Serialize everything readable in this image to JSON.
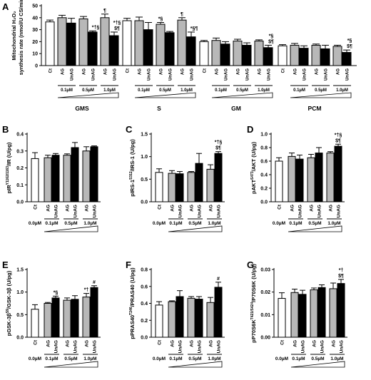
{
  "chart_data": [
    {
      "type": "bar",
      "panel": "A",
      "ylabel": "Mitochondrial H₂O₂ synthesis rate (nmol/U CS/min)",
      "ylim": [
        0,
        50
      ],
      "yticks": [
        0,
        10,
        20,
        30,
        40,
        50
      ],
      "grid": false,
      "categories": [
        "Ct",
        "AG 0.1µM",
        "UnAG 0.1µM",
        "AG 0.5µM",
        "UnAG 0.5µM",
        "AG 1.0µM",
        "UnAG 1.0µM"
      ],
      "tick_labels": [
        "Ct",
        "AG",
        "UnAG",
        "AG",
        "UnAG",
        "AG",
        "UnAG"
      ],
      "dose_labels": [
        "0.1µM",
        "0.5µM",
        "1.0µM"
      ],
      "groups": [
        {
          "name": "GMS",
          "values": [
            36.5,
            40.0,
            35.5,
            39.0,
            28.0,
            40.0,
            25.0
          ],
          "errors": [
            1.5,
            2.0,
            4.0,
            2.0,
            1.0,
            3.0,
            3.0
          ],
          "annotations": [
            null,
            null,
            null,
            null,
            "*†§",
            "¶",
            "*†§\n$¶"
          ]
        },
        {
          "name": "S",
          "values": [
            37.5,
            37.5,
            30.0,
            34.5,
            27.5,
            38.0,
            24.0
          ],
          "errors": [
            2.0,
            3.0,
            6.0,
            1.5,
            1.0,
            2.0,
            4.0
          ],
          "annotations": [
            null,
            null,
            null,
            "*§",
            null,
            "¶",
            "*§¶"
          ]
        },
        {
          "name": "GM",
          "values": [
            20.0,
            21.0,
            18.0,
            20.5,
            17.0,
            20.5,
            15.0
          ],
          "errors": [
            1.0,
            2.0,
            2.0,
            1.5,
            2.0,
            1.0,
            2.0
          ],
          "annotations": [
            null,
            null,
            null,
            null,
            null,
            null,
            "*§\n$¶"
          ]
        },
        {
          "name": "PCM",
          "values": [
            16.5,
            17.0,
            14.5,
            17.0,
            14.0,
            16.0,
            11.0
          ],
          "errors": [
            1.0,
            1.5,
            2.0,
            1.0,
            3.0,
            1.0,
            2.0
          ],
          "annotations": [
            null,
            null,
            null,
            null,
            null,
            null,
            "*§\n$¶"
          ]
        }
      ]
    },
    {
      "type": "bar",
      "panel": "B",
      "ylabel": "pIR(Y1162/1163)/IR (U/pg)",
      "ylim": [
        0,
        0.4
      ],
      "yticks": [
        0.0,
        0.1,
        0.2,
        0.3,
        0.4
      ],
      "tick_format": "1",
      "categories": [
        "Ct",
        "AG",
        "UnAG",
        "AG",
        "UnAG",
        "AG",
        "UnAG"
      ],
      "dose_labels": [
        "0.0µM",
        "0.1µM",
        "0.5µM",
        "1.0µM"
      ],
      "values": [
        0.255,
        0.26,
        0.275,
        0.275,
        0.32,
        0.3,
        0.325
      ],
      "errors": [
        0.035,
        0.015,
        0.01,
        0.008,
        0.03,
        0.025,
        0.005
      ],
      "annotations": [
        null,
        null,
        null,
        null,
        null,
        null,
        null
      ]
    },
    {
      "type": "bar",
      "panel": "C",
      "ylabel": "pIRS-1(S312)/IRS-1 (U/pg)",
      "ylim": [
        0,
        1.5
      ],
      "yticks": [
        0.0,
        0.5,
        1.0,
        1.5
      ],
      "tick_format": "1",
      "categories": [
        "Ct",
        "AG",
        "UnAG",
        "AG",
        "UnAG",
        "AG",
        "UnAG"
      ],
      "dose_labels": [
        "0.0µM",
        "0.1µM",
        "0.5µM",
        "1.0µM"
      ],
      "values": [
        0.65,
        0.63,
        0.62,
        0.65,
        0.85,
        0.72,
        1.07
      ],
      "errors": [
        0.08,
        0.06,
        0.05,
        0.02,
        0.22,
        0.1,
        0.04
      ],
      "annotations": [
        null,
        null,
        null,
        null,
        null,
        null,
        "*†§\n$¶"
      ]
    },
    {
      "type": "bar",
      "panel": "D",
      "ylabel": "pAKT(S473)/AKT (U/pg)",
      "ylim": [
        0,
        1.0
      ],
      "yticks": [
        0.0,
        0.2,
        0.4,
        0.6,
        0.8,
        1.0
      ],
      "tick_format": "1",
      "categories": [
        "Ct",
        "AG",
        "UnAG",
        "AG",
        "UnAG",
        "AG",
        "UnAG"
      ],
      "dose_labels": [
        "0.0µM",
        "0.1µM",
        "0.5µM",
        "1.0µM"
      ],
      "values": [
        0.6,
        0.67,
        0.63,
        0.65,
        0.72,
        0.72,
        0.82
      ],
      "errors": [
        0.05,
        0.05,
        0.06,
        0.05,
        0.08,
        0.02,
        0.03
      ],
      "annotations": [
        null,
        null,
        null,
        null,
        null,
        null,
        "*†§\n$¶"
      ]
    },
    {
      "type": "bar",
      "panel": "E",
      "ylabel": "pGSK-3β(S9)/GSK-3β (U/pg)",
      "ylim": [
        0,
        1.5
      ],
      "yticks": [
        0.0,
        0.5,
        1.0,
        1.5
      ],
      "tick_format": "1",
      "categories": [
        "Ct",
        "AG",
        "UnAG",
        "AG",
        "UnAG",
        "AG",
        "UnAG"
      ],
      "dose_labels": [
        "0.0µM",
        "0.1µM",
        "0.5µM",
        "1.0µM"
      ],
      "values": [
        0.62,
        0.75,
        0.87,
        0.82,
        0.84,
        0.89,
        1.1
      ],
      "errors": [
        0.1,
        0.02,
        0.04,
        0.05,
        0.08,
        0.08,
        0.04
      ],
      "annotations": [
        null,
        null,
        "*§",
        null,
        null,
        "*†",
        "#"
      ]
    },
    {
      "type": "bar",
      "panel": "F",
      "ylabel": "pPRAS40(T246)/PRAS40 (U/pg)",
      "ylim": [
        0,
        0.8
      ],
      "yticks": [
        0.0,
        0.2,
        0.4,
        0.6,
        0.8
      ],
      "tick_format": "1",
      "categories": [
        "Ct",
        "AG",
        "UnAG",
        "AG",
        "UnAG",
        "AG",
        "UnAG"
      ],
      "dose_labels": [
        "0.0µM",
        "0.1µM",
        "0.5µM",
        "1.0µM"
      ],
      "values": [
        0.38,
        0.42,
        0.48,
        0.46,
        0.45,
        0.41,
        0.59
      ],
      "errors": [
        0.04,
        0.01,
        0.07,
        0.02,
        0.03,
        0.06,
        0.06
      ],
      "annotations": [
        null,
        null,
        null,
        null,
        null,
        null,
        "#"
      ]
    },
    {
      "type": "bar",
      "panel": "G",
      "ylabel": "pP70S6K(T421/S424)/P70S6K (U/pg)",
      "ylim": [
        0,
        0.03
      ],
      "yticks": [
        0.0,
        0.01,
        0.02,
        0.03
      ],
      "tick_format": "2",
      "categories": [
        "Ct",
        "AG",
        "UnAG",
        "AG",
        "UnAG",
        "AG",
        "UnAG"
      ],
      "dose_labels": [
        "0.0µM",
        "0.1µM",
        "0.5µM",
        "1.0µM"
      ],
      "values": [
        0.0172,
        0.0198,
        0.019,
        0.021,
        0.022,
        0.0215,
        0.0238
      ],
      "errors": [
        0.0025,
        0.0015,
        0.0018,
        0.0008,
        0.0012,
        0.0025,
        0.0018
      ],
      "annotations": [
        null,
        null,
        null,
        null,
        null,
        null,
        "*†\n$¶"
      ]
    }
  ],
  "colors": {
    "control": "#ffffff",
    "ag": "#b8b8b8",
    "unag": "#000000",
    "axis": "#000000"
  }
}
